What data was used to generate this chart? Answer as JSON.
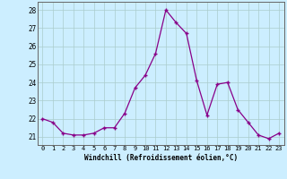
{
  "x": [
    0,
    1,
    2,
    3,
    4,
    5,
    6,
    7,
    8,
    9,
    10,
    11,
    12,
    13,
    14,
    15,
    16,
    17,
    18,
    19,
    20,
    21,
    22,
    23
  ],
  "y": [
    22.0,
    21.8,
    21.2,
    21.1,
    21.1,
    21.2,
    21.5,
    21.5,
    22.3,
    23.7,
    24.4,
    25.6,
    28.0,
    27.3,
    26.7,
    24.1,
    22.2,
    23.9,
    24.0,
    22.5,
    21.8,
    21.1,
    20.9,
    21.2
  ],
  "ylim": [
    20.55,
    28.45
  ],
  "yticks": [
    21,
    22,
    23,
    24,
    25,
    26,
    27,
    28
  ],
  "xticks": [
    0,
    1,
    2,
    3,
    4,
    5,
    6,
    7,
    8,
    9,
    10,
    11,
    12,
    13,
    14,
    15,
    16,
    17,
    18,
    19,
    20,
    21,
    22,
    23
  ],
  "xlabel": "Windchill (Refroidissement éolien,°C)",
  "line_color": "#880088",
  "marker": "+",
  "bg_color": "#cceeff",
  "grid_color": "#aacccc",
  "spine_color": "#666666"
}
